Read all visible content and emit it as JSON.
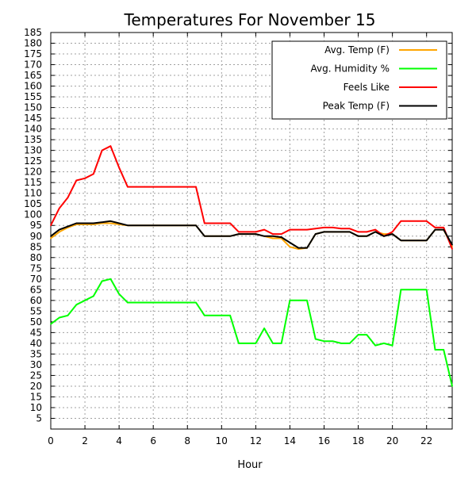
{
  "chart_data": {
    "type": "line",
    "title": "Temperatures For November 15",
    "xlabel": "Hour",
    "ylabel": "",
    "xlim": [
      0,
      23.5
    ],
    "ylim": [
      0,
      185
    ],
    "xticks": [
      0,
      2,
      4,
      6,
      8,
      10,
      12,
      14,
      16,
      18,
      20,
      22
    ],
    "yticks": [
      5,
      10,
      15,
      20,
      25,
      30,
      35,
      40,
      45,
      50,
      55,
      60,
      65,
      70,
      75,
      80,
      85,
      90,
      95,
      100,
      105,
      110,
      115,
      120,
      125,
      130,
      135,
      140,
      145,
      150,
      155,
      160,
      165,
      170,
      175,
      180,
      185
    ],
    "grid": true,
    "legend_position": "top-right",
    "series": [
      {
        "name": "Avg. Temp (F)",
        "color": "#FFA500",
        "points": [
          [
            0,
            89
          ],
          [
            0.5,
            92
          ],
          [
            1,
            94
          ],
          [
            1.5,
            95.5
          ],
          [
            2,
            95.5
          ],
          [
            2.5,
            95.5
          ],
          [
            3,
            96
          ],
          [
            3.5,
            96
          ],
          [
            4,
            95.5
          ],
          [
            4.5,
            95
          ],
          [
            5,
            95
          ],
          [
            5.5,
            95
          ],
          [
            6,
            95
          ],
          [
            6.5,
            95
          ],
          [
            7,
            95
          ],
          [
            7.5,
            95
          ],
          [
            8,
            95
          ],
          [
            8.5,
            95
          ],
          [
            9,
            90
          ],
          [
            9.5,
            90
          ],
          [
            10,
            90
          ],
          [
            10.5,
            90
          ],
          [
            11,
            91
          ],
          [
            11.5,
            91
          ],
          [
            12,
            91
          ],
          [
            12.5,
            90
          ],
          [
            13,
            89
          ],
          [
            13.5,
            89
          ],
          [
            14,
            85
          ],
          [
            14.5,
            84
          ],
          [
            15,
            84.5
          ],
          [
            15.5,
            91
          ],
          [
            16,
            92
          ],
          [
            16.5,
            92
          ],
          [
            17,
            92
          ],
          [
            17.5,
            92
          ],
          [
            18,
            90
          ],
          [
            18.5,
            90
          ],
          [
            19,
            92
          ],
          [
            19.5,
            91
          ],
          [
            20,
            91
          ],
          [
            20.5,
            88
          ],
          [
            21,
            88
          ],
          [
            21.5,
            88
          ],
          [
            22,
            88
          ],
          [
            22.5,
            93
          ],
          [
            23,
            93
          ],
          [
            23.5,
            85
          ]
        ]
      },
      {
        "name": "Avg. Humidity %",
        "color": "#00FF00",
        "points": [
          [
            0,
            49
          ],
          [
            0.5,
            52
          ],
          [
            1,
            53
          ],
          [
            1.5,
            58
          ],
          [
            2,
            60
          ],
          [
            2.5,
            62
          ],
          [
            3,
            69
          ],
          [
            3.5,
            70
          ],
          [
            4,
            63
          ],
          [
            4.5,
            59
          ],
          [
            5,
            59
          ],
          [
            5.5,
            59
          ],
          [
            6,
            59
          ],
          [
            6.5,
            59
          ],
          [
            7,
            59
          ],
          [
            7.5,
            59
          ],
          [
            8,
            59
          ],
          [
            8.5,
            59
          ],
          [
            9,
            53
          ],
          [
            9.5,
            53
          ],
          [
            10,
            53
          ],
          [
            10.5,
            53
          ],
          [
            11,
            40
          ],
          [
            11.5,
            40
          ],
          [
            12,
            40
          ],
          [
            12.5,
            47
          ],
          [
            13,
            40
          ],
          [
            13.5,
            40
          ],
          [
            14,
            60
          ],
          [
            14.5,
            60
          ],
          [
            15,
            60
          ],
          [
            15.5,
            42
          ],
          [
            16,
            41
          ],
          [
            16.5,
            41
          ],
          [
            17,
            40
          ],
          [
            17.5,
            40
          ],
          [
            18,
            44
          ],
          [
            18.5,
            44
          ],
          [
            19,
            39
          ],
          [
            19.5,
            40
          ],
          [
            20,
            39
          ],
          [
            20.5,
            65
          ],
          [
            21,
            65
          ],
          [
            21.5,
            65
          ],
          [
            22,
            65
          ],
          [
            22.5,
            37
          ],
          [
            23,
            37
          ],
          [
            23.5,
            20
          ]
        ]
      },
      {
        "name": "Feels Like",
        "color": "#FF0000",
        "points": [
          [
            0,
            95
          ],
          [
            0.5,
            103
          ],
          [
            1,
            108
          ],
          [
            1.5,
            116
          ],
          [
            2,
            117
          ],
          [
            2.5,
            119
          ],
          [
            3,
            130
          ],
          [
            3.5,
            132
          ],
          [
            4,
            122
          ],
          [
            4.5,
            113
          ],
          [
            5,
            113
          ],
          [
            5.5,
            113
          ],
          [
            6,
            113
          ],
          [
            6.5,
            113
          ],
          [
            7,
            113
          ],
          [
            7.5,
            113
          ],
          [
            8,
            113
          ],
          [
            8.5,
            113
          ],
          [
            9,
            96
          ],
          [
            9.5,
            96
          ],
          [
            10,
            96
          ],
          [
            10.5,
            96
          ],
          [
            11,
            92
          ],
          [
            11.5,
            92
          ],
          [
            12,
            92
          ],
          [
            12.5,
            93
          ],
          [
            13,
            91
          ],
          [
            13.5,
            91
          ],
          [
            14,
            93
          ],
          [
            14.5,
            93
          ],
          [
            15,
            93
          ],
          [
            15.5,
            93.5
          ],
          [
            16,
            94
          ],
          [
            16.5,
            94
          ],
          [
            17,
            93.5
          ],
          [
            17.5,
            93.5
          ],
          [
            18,
            92
          ],
          [
            18.5,
            92
          ],
          [
            19,
            93
          ],
          [
            19.5,
            90
          ],
          [
            20,
            92
          ],
          [
            20.5,
            97
          ],
          [
            21,
            97
          ],
          [
            21.5,
            97
          ],
          [
            22,
            97
          ],
          [
            22.5,
            94
          ],
          [
            23,
            94
          ],
          [
            23.5,
            84
          ]
        ]
      },
      {
        "name": "Peak Temp (F)",
        "color": "#000000",
        "points": [
          [
            0,
            90
          ],
          [
            0.5,
            93
          ],
          [
            1,
            94.5
          ],
          [
            1.5,
            96
          ],
          [
            2,
            96
          ],
          [
            2.5,
            96
          ],
          [
            3,
            96.5
          ],
          [
            3.5,
            97
          ],
          [
            4,
            96
          ],
          [
            4.5,
            95
          ],
          [
            5,
            95
          ],
          [
            5.5,
            95
          ],
          [
            6,
            95
          ],
          [
            6.5,
            95
          ],
          [
            7,
            95
          ],
          [
            7.5,
            95
          ],
          [
            8,
            95
          ],
          [
            8.5,
            95
          ],
          [
            9,
            90
          ],
          [
            9.5,
            90
          ],
          [
            10,
            90
          ],
          [
            10.5,
            90
          ],
          [
            11,
            91
          ],
          [
            11.5,
            91
          ],
          [
            12,
            91
          ],
          [
            12.5,
            90
          ],
          [
            13,
            90
          ],
          [
            13.5,
            89.5
          ],
          [
            14,
            87
          ],
          [
            14.5,
            84.5
          ],
          [
            15,
            84.5
          ],
          [
            15.5,
            91
          ],
          [
            16,
            92
          ],
          [
            16.5,
            92
          ],
          [
            17,
            92
          ],
          [
            17.5,
            92
          ],
          [
            18,
            90
          ],
          [
            18.5,
            90
          ],
          [
            19,
            92
          ],
          [
            19.5,
            90
          ],
          [
            20,
            91
          ],
          [
            20.5,
            88
          ],
          [
            21,
            88
          ],
          [
            21.5,
            88
          ],
          [
            22,
            88
          ],
          [
            22.5,
            93
          ],
          [
            23,
            93
          ],
          [
            23.5,
            86
          ]
        ]
      }
    ]
  }
}
